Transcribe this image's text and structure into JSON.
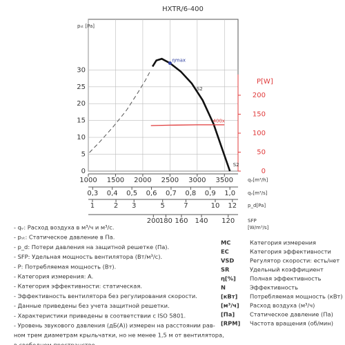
{
  "chart_data": {
    "type": "line",
    "title": "HXTR/6-400",
    "ylabel": "pₛₜ [Pa]",
    "y2label": "P[W]",
    "ylim": [
      0,
      45
    ],
    "yticks": [
      0,
      5,
      10,
      15,
      20,
      25,
      30
    ],
    "y2lim": [
      0,
      400
    ],
    "y2ticks": [
      0,
      50,
      100,
      150,
      200
    ],
    "grid": true,
    "x_axes": [
      {
        "label": "qᵥ[m³/h]",
        "lim": [
          1000,
          3750
        ],
        "scale": "linear",
        "ticks": [
          1000,
          1500,
          2000,
          2500,
          3000,
          3500
        ]
      },
      {
        "label": "qᵥ[m³/s]",
        "lim": [
          0.2778,
          1.0417
        ],
        "scale": "linear",
        "ticks": [
          {
            "value": 0.3,
            "label": "0,3"
          },
          {
            "value": 0.4,
            "label": "0,4"
          },
          {
            "value": 0.5,
            "label": "0,5"
          },
          {
            "value": 0.6,
            "label": "0,6"
          },
          {
            "value": 0.7,
            "label": "0,7"
          },
          {
            "value": 0.8,
            "label": "0,8"
          },
          {
            "value": 0.9,
            "label": "0,9"
          },
          {
            "value": 1.0,
            "label": "1,0"
          }
        ]
      },
      {
        "label": "p_d[Pa]",
        "lim": [
          0.86,
          12.7
        ],
        "scale": "sqrt",
        "ticks": [
          1,
          2,
          3,
          5,
          7,
          10,
          12
        ]
      },
      {
        "label": "SFP",
        "sublabel": "[W/m³/s]",
        "lim": [
          476,
          114
        ],
        "scale": "reciprocal",
        "ticks": [
          200,
          180,
          160,
          140,
          120
        ]
      }
    ],
    "series": [
      {
        "color": "#555555",
        "style": "dashed",
        "x": [
          1020,
          1200,
          1450,
          1700,
          1900,
          2050,
          2150
        ],
        "values": [
          5.5,
          8.5,
          13,
          18,
          23,
          27,
          30
        ]
      },
      {
        "color": "#111111",
        "style": "solid",
        "x": [
          2180,
          2250,
          2350,
          2500,
          2700,
          2900,
          3100,
          3300,
          3450,
          3600
        ],
        "values": [
          31,
          32.8,
          33.3,
          32,
          29.5,
          26,
          21,
          14,
          7,
          0
        ]
      },
      {
        "color": "#e03a3a",
        "style": "solid",
        "axis": "y2",
        "x": [
          2150,
          2500,
          3000,
          3500
        ],
        "values": [
          120,
          121,
          122,
          122
        ]
      }
    ],
    "annotations": [
      {
        "text": "ηmax",
        "x": 2500,
        "y": 32,
        "color": "#3040a0"
      },
      {
        "text": "S2",
        "x": 2950,
        "y": 23.5,
        "color": "#333333"
      },
      {
        "text": "S2",
        "x": 3620,
        "y": 1,
        "color": "#333333"
      },
      {
        "text": "400x",
        "x": 3250,
        "y": 14,
        "color": "#e03a3a"
      }
    ]
  },
  "notes": [
    "- qᵥ: Расход воздуха в м³/ч и м³/с.",
    "- pₛₜ: Статическое давление в Па.",
    "- p_d: Потери давления на защитной решетке (Па).",
    "- SFP: Удельная мощность вентилятора (Вт/м³/с).",
    "- P: Потребляемая мощность (Вт).",
    "- Категория измерения: A.",
    "- Категория эффективности: статическая.",
    "- Эффективность вентилятора без регулирования скорости.",
    "- Данные приведены без учета защитной решетки.",
    "- Характеристики приведены в соответствии с ISO 5801.",
    "- Уровень звукового давления (дБ(A)) измерен на расстоянии рав-",
    "ном трем диаметрам крыльчатки, но не менее 1,5 м от вентилятора,",
    "в свободном пространстве."
  ],
  "legend": [
    [
      "MC",
      "Категория измерения"
    ],
    [
      "EC",
      "Категория эффективности"
    ],
    [
      "VSD",
      "Регулятор скорости: есть/нет"
    ],
    [
      "SR",
      "Удельный коэффициент"
    ],
    [
      "η[%]",
      "Полная эффективность"
    ],
    [
      "N",
      "Эффективность"
    ],
    [
      "[кВт]",
      "Потребляемая мощность (кВт)"
    ],
    [
      "[м³/ч]",
      "Расход воздуха (м³/ч)"
    ],
    [
      "[Па]",
      "Статическое давление (Па)"
    ],
    [
      "[RPM]",
      "Частота вращения (об/мин)"
    ]
  ]
}
